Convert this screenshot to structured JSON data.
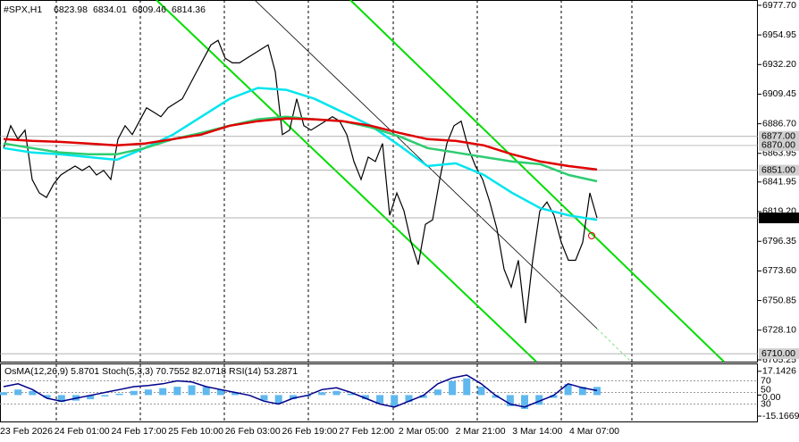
{
  "chart_data": [
    {
      "type": "line",
      "title": "#SPX,H1",
      "quote": [
        6823.98,
        6834.01,
        6809.46,
        6814.36
      ],
      "ylim": [
        6703.9,
        6981.8
      ],
      "yticks": [
        {
          "value": 6977.7,
          "label": "6977.70"
        },
        6954.95,
        {
          "value": 6932.2,
          "label": "6932.20"
        },
        6909.45,
        {
          "value": 6886.7,
          "label": "6886.70"
        },
        6863.95,
        6841.95,
        {
          "value": 6819.2,
          "label": "6819.20"
        },
        6796.35,
        {
          "value": 6773.6,
          "label": "6773.60"
        },
        6750.85,
        {
          "value": 6728.1,
          "label": "6728.10"
        },
        6705.25
      ],
      "levels": [
        {
          "value": 6877,
          "label": "6877.00"
        },
        {
          "value": 6870,
          "label": "6870.00"
        },
        {
          "value": 6851,
          "label": "6851.00"
        },
        {
          "value": 6710,
          "label": "6710.00"
        }
      ],
      "last": 6814.36,
      "x_labels": [
        "23 Feb 2026",
        "24 Feb 01:00",
        "24 Feb 17:00",
        "25 Feb 10:00",
        "26 Feb 03:00",
        "26 Feb 19:00",
        "27 Feb 12:00",
        "2 Mar 05:00",
        "2 Mar 21:00",
        "3 Mar 14:00",
        "4 Mar 07:00"
      ],
      "series": [
        {
          "color": "#000000",
          "values": [
            6868.0,
            6885.2,
            6874.9,
            6881.8,
            6843.9,
            6833.5,
            6830.1,
            6840.4,
            6847.3,
            6850.8,
            6854.2,
            6850.8,
            6854.2,
            6847.3,
            6850.8,
            6843.9,
            6874.9,
            6885.2,
            6878.4,
            6888.7,
            6899.0,
            6895.6,
            6892.1,
            6899.0,
            6902.5,
            6905.9,
            6916.3,
            6926.6,
            6937.0,
            6947.3,
            6950.8,
            6937.0,
            6933.5,
            6933.5,
            6937.0,
            6940.4,
            6943.9,
            6947.3,
            6926.6,
            6878.4,
            6881.8,
            6905.9,
            6885.2,
            6881.8,
            6885.2,
            6888.7,
            6892.1,
            6888.7,
            6878.4,
            6857.7,
            6843.9,
            6861.1,
            6857.7,
            6871.5,
            6816.3,
            6833.5,
            6819.7,
            6795.6,
            6778.4,
            6809.4,
            6812.8,
            6843.9,
            6871.5,
            6885.2,
            6888.7,
            6868.0,
            6854.2,
            6843.9,
            6826.6,
            6805.9,
            6774.9,
            6761.1,
            6781.8,
            6733.5,
            6781.8,
            6819.7,
            6826.6,
            6816.3,
            6795.6,
            6781.8,
            6781.8,
            6795.6,
            6833.5,
            6814.36
          ]
        },
        {
          "color": "#00e5ee",
          "values": [
            6868.0,
            6864.6,
            6863.2,
            6861.1,
            6859.0,
            6868.0,
            6878.4,
            6892.1,
            6905.9,
            6914.2,
            6912.8,
            6905.9,
            6895.6,
            6885.2,
            6870.1,
            6854.2,
            6856.3,
            6847.3,
            6833.5,
            6821.8,
            6816.3,
            6812.8
          ]
        },
        {
          "color": "#2ecc71",
          "values": [
            6871.5,
            6868.0,
            6864.6,
            6863.2,
            6863.2,
            6868.0,
            6874.9,
            6879.7,
            6885.2,
            6890.1,
            6892.1,
            6890.1,
            6888.7,
            6883.9,
            6877.0,
            6868.0,
            6864.6,
            6861.1,
            6857.7,
            6855.6,
            6847.3,
            6842.5
          ]
        },
        {
          "color": "#e00000",
          "values": [
            6874.9,
            6873.5,
            6872.8,
            6871.5,
            6870.1,
            6871.5,
            6874.9,
            6878.4,
            6885.2,
            6888.7,
            6890.8,
            6890.1,
            6888.7,
            6885.2,
            6879.7,
            6874.9,
            6873.5,
            6870.1,
            6863.2,
            6857.7,
            6854.2,
            6851.5
          ]
        }
      ]
    },
    {
      "type": "bar",
      "title": "OsMA(12,26,9) 5.8701  Stoch(5,3,3) 70.7552 82.0718  RSI(14) 53.2871",
      "ylim": [
        -19.0,
        22.8
      ],
      "yticks": [
        17.1426,
        {
          "value": 0,
          "label": "0.00"
        },
        -15.1669
      ],
      "y2lim": [
        0,
        100
      ],
      "y2ticks": [
        30,
        50,
        70
      ],
      "series": [
        {
          "color": "#5fb8ee",
          "values": [
            2,
            4,
            3,
            -2,
            -5,
            -4,
            -3,
            -1,
            1,
            3,
            4,
            5,
            6,
            7,
            6,
            4,
            2,
            0,
            -4,
            -6,
            -3,
            -1,
            2,
            3,
            1,
            -3,
            -6,
            -8,
            -5,
            -2,
            4,
            10,
            12,
            6,
            -2,
            -8,
            -10,
            -7,
            -2,
            8,
            6,
            5.8701
          ]
        },
        {
          "color": "#00008b",
          "axis": "y2",
          "values": [
            60,
            65,
            55,
            40,
            35,
            40,
            45,
            50,
            55,
            60,
            62,
            65,
            70,
            68,
            60,
            55,
            50,
            45,
            35,
            30,
            40,
            45,
            55,
            58,
            50,
            40,
            30,
            25,
            35,
            45,
            65,
            75,
            80,
            65,
            45,
            30,
            25,
            35,
            45,
            65,
            58,
            53.2871
          ]
        }
      ]
    }
  ]
}
